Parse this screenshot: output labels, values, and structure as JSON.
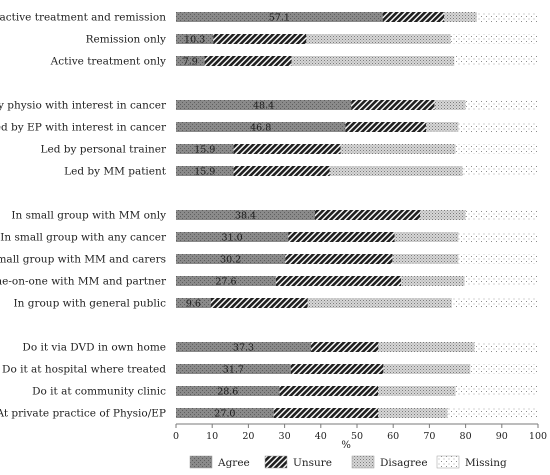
{
  "chart_data": {
    "type": "bar",
    "orientation": "horizontal",
    "stacked": true,
    "xlabel": "%",
    "xlim": [
      0,
      100
    ],
    "xticks": [
      0,
      10,
      20,
      30,
      40,
      50,
      60,
      70,
      80,
      90,
      100
    ],
    "categories": [
      "During active treatment and remission",
      "Remission only",
      "Active treatment only",
      "Led by physio with interest in cancer",
      "Led by EP with interest in cancer",
      "Led by personal trainer",
      "Led by MM patient",
      "In small group with MM only",
      "In small group with any cancer",
      "Small group with MM and carers",
      "One-on-one with MM and partner",
      "In group with general public",
      "Do it via DVD in own home",
      "Do it at hospital where treated",
      "Do it at community clinic",
      "At private practice of Physio/EP"
    ],
    "groups": [
      3,
      4,
      5,
      4
    ],
    "series": [
      {
        "name": "Agree",
        "color": "#858585",
        "pattern": "dots-dark",
        "values": [
          57.1,
          10.3,
          7.9,
          48.4,
          46.8,
          15.9,
          15.9,
          38.4,
          31.0,
          30.2,
          27.6,
          9.6,
          37.3,
          31.7,
          28.6,
          27.0
        ]
      },
      {
        "name": "Unsure",
        "color": "#2e2e2e",
        "pattern": "diagonal-hatch",
        "values": [
          17.0,
          25.7,
          24.0,
          23.0,
          22.3,
          29.6,
          26.6,
          29.0,
          29.4,
          29.6,
          34.6,
          26.8,
          18.6,
          25.6,
          27.2,
          28.8
        ]
      },
      {
        "name": "Disagree",
        "color": "#bdbdbd",
        "pattern": "dense-dots",
        "values": [
          9.0,
          39.9,
          45.0,
          8.6,
          8.9,
          31.7,
          36.7,
          12.6,
          17.6,
          18.2,
          17.5,
          39.8,
          26.6,
          24.0,
          21.4,
          19.2
        ]
      },
      {
        "name": "Missing",
        "color": "#f2f2f2",
        "pattern": "sparse-dots",
        "values": [
          16.9,
          24.1,
          23.1,
          20.0,
          22.0,
          22.8,
          20.8,
          20.0,
          22.0,
          22.0,
          20.3,
          23.8,
          17.5,
          18.7,
          22.8,
          25.0
        ]
      }
    ],
    "data_labels": "Agree values",
    "legend": {
      "position": "bottom",
      "entries": [
        "Agree",
        "Unsure",
        "Disagree",
        "Missing"
      ]
    },
    "grid": false
  }
}
